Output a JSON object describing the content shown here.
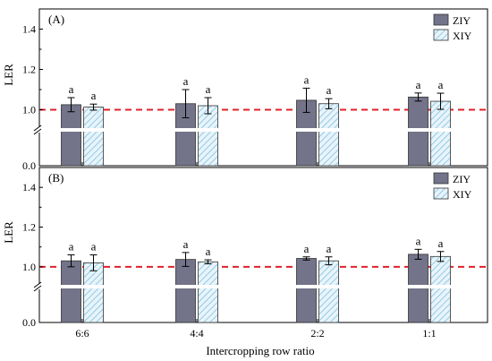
{
  "colors": {
    "ziy": "#737389",
    "xiy": "#9ed0e8",
    "ref_line": "#e0202a"
  },
  "chart_data": [
    {
      "type": "bar",
      "panel_label": "(A)",
      "categories": [
        "6:6",
        "4:4",
        "2:2",
        "1:1"
      ],
      "series": [
        {
          "name": "ZIY",
          "pattern": "solid",
          "values": [
            1.025,
            1.03,
            1.047,
            1.063
          ],
          "errors": [
            0.035,
            0.07,
            0.06,
            0.02
          ]
        },
        {
          "name": "XIY",
          "pattern": "hatched",
          "values": [
            1.013,
            1.02,
            1.03,
            1.042
          ],
          "errors": [
            0.015,
            0.04,
            0.025,
            0.04
          ]
        }
      ],
      "letters": [
        [
          "a",
          "a",
          "a",
          "a"
        ],
        [
          "a",
          "a",
          "a",
          "a"
        ]
      ],
      "ylabel": "LER",
      "yticks": [
        "0.0",
        "1.0",
        "1.2",
        "1.4"
      ],
      "axis_break": "between 0.0 and 1.0",
      "reference_line": 1.0,
      "legend": "top-right"
    },
    {
      "type": "bar",
      "panel_label": "(B)",
      "categories": [
        "6:6",
        "4:4",
        "2:2",
        "1:1"
      ],
      "series": [
        {
          "name": "ZIY",
          "pattern": "solid",
          "values": [
            1.03,
            1.037,
            1.042,
            1.063
          ],
          "errors": [
            0.03,
            0.035,
            0.008,
            0.025
          ]
        },
        {
          "name": "XIY",
          "pattern": "hatched",
          "values": [
            1.02,
            1.025,
            1.03,
            1.052
          ],
          "errors": [
            0.04,
            0.01,
            0.02,
            0.025
          ]
        }
      ],
      "letters": [
        [
          "a",
          "a",
          "a",
          "a"
        ],
        [
          "a",
          "a",
          "a",
          "a"
        ]
      ],
      "ylabel": "LER",
      "yticks": [
        "0.0",
        "1.0",
        "1.2",
        "1.4"
      ],
      "axis_break": "between 0.0 and 1.0",
      "reference_line": 1.0,
      "legend": "top-right"
    }
  ],
  "xlabel": "Intercropping row ratio"
}
